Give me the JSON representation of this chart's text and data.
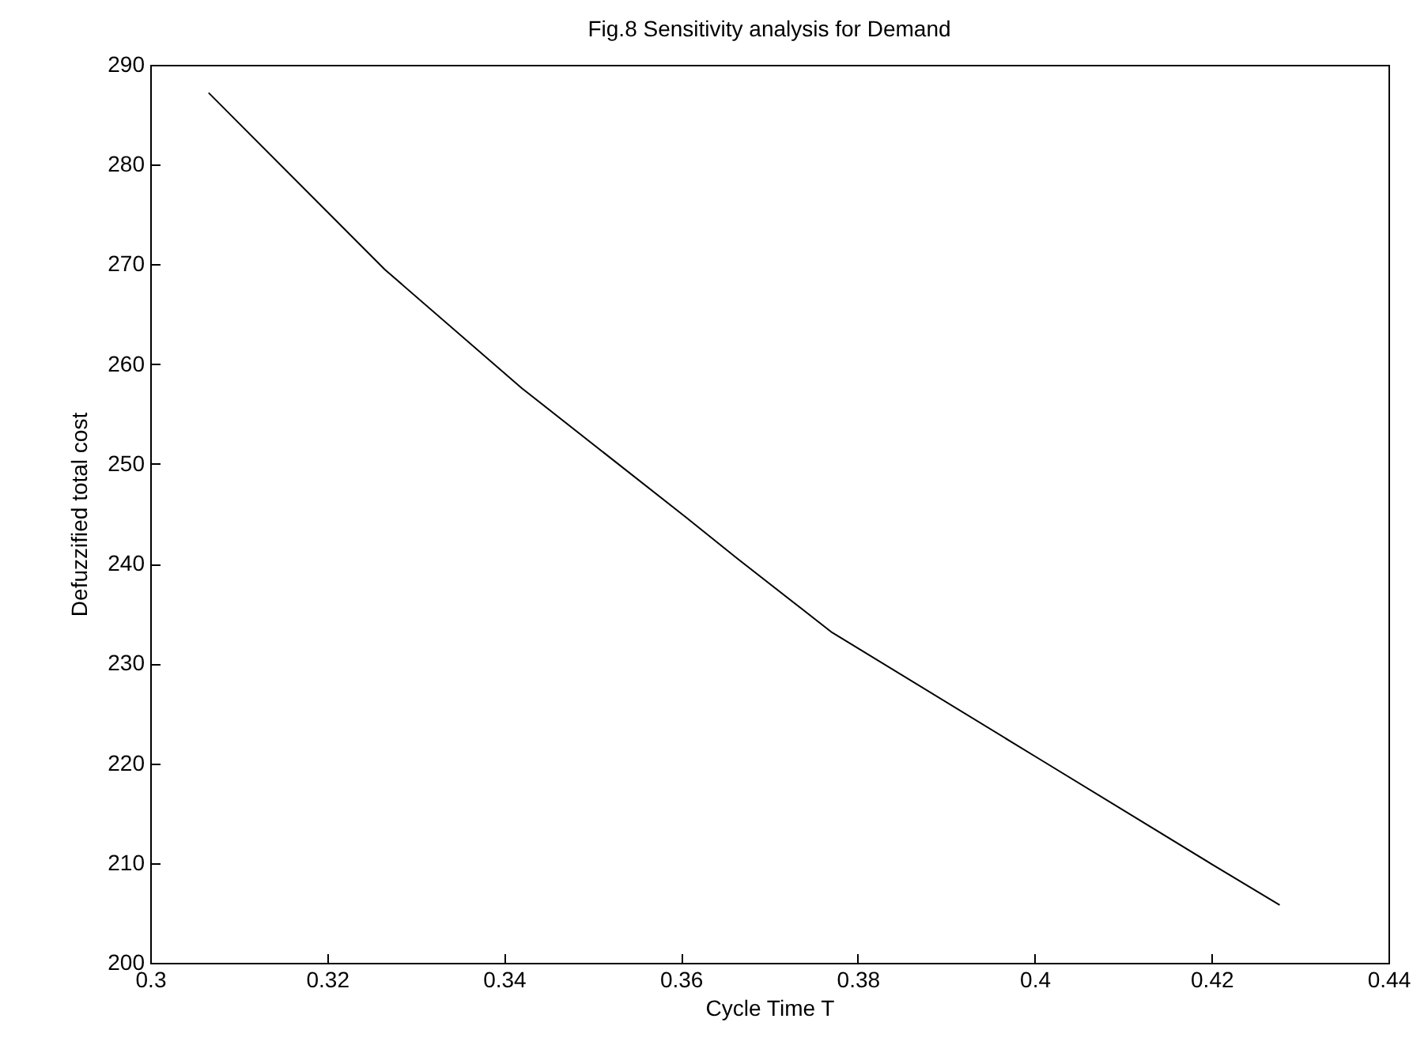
{
  "chart_data": {
    "type": "line",
    "title": "Fig.8 Sensitivity analysis for Demand",
    "xlabel": "Cycle Time T",
    "ylabel": "Defuzzified total cost",
    "x": [
      0.3066,
      0.3265,
      0.342,
      0.3605,
      0.3664,
      0.3771,
      0.4004,
      0.42,
      0.4277
    ],
    "series": [
      {
        "color": "#000000",
        "values": [
          287.2,
          269.5,
          257.6,
          244.7,
          240.5,
          233.1,
          220.5,
          209.9,
          205.8
        ]
      }
    ],
    "xlim": [
      0.3,
      0.44
    ],
    "xticks": [
      0.3,
      0.32,
      0.34,
      0.36,
      0.38,
      0.4,
      0.42,
      0.44
    ],
    "ylim": [
      200,
      290
    ],
    "yticks": [
      200,
      210,
      220,
      230,
      240,
      250,
      260,
      270,
      280,
      290
    ],
    "grid": false,
    "legend": false,
    "marker": "none",
    "line_style": "solid"
  }
}
